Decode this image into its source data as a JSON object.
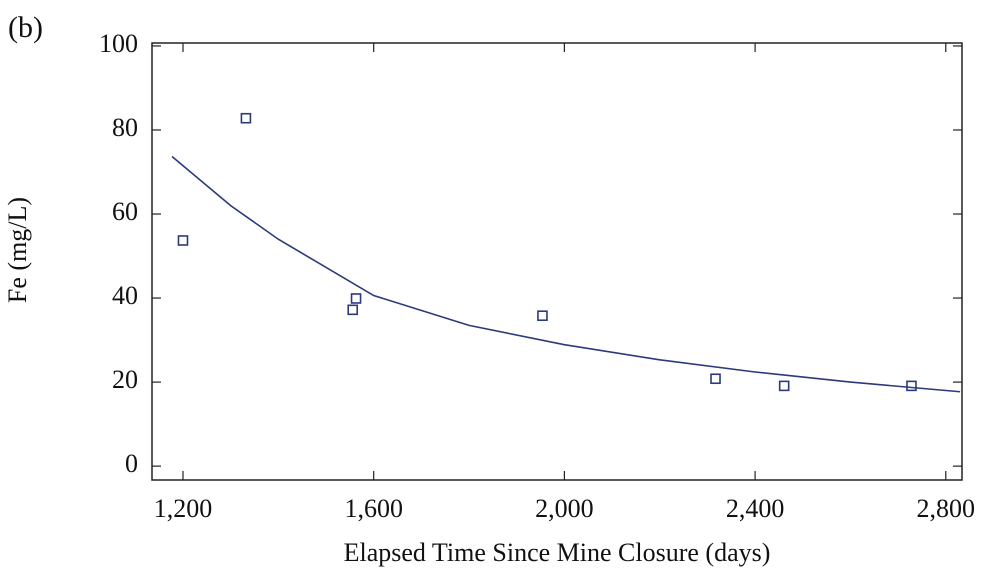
{
  "chart_data": {
    "type": "scatter",
    "panel_label": "(b)",
    "x_label": "Elapsed Time Since Mine Closure (days)",
    "y_label": "Fe (mg/L)",
    "xlim": [
      1135,
      2834
    ],
    "ylim": [
      -3.3,
      100.7
    ],
    "xticks": [
      {
        "value": 1200,
        "label": "1,200"
      },
      {
        "value": 1600,
        "label": "1,600"
      },
      {
        "value": 2000,
        "label": "2,000"
      },
      {
        "value": 2400,
        "label": "2,400"
      },
      {
        "value": 2800,
        "label": "2,800"
      }
    ],
    "yticks": [
      0,
      20,
      40,
      60,
      80,
      100
    ],
    "color": "#2b3a7a",
    "points": {
      "x": [
        1200,
        1332,
        1556,
        1563,
        1954,
        2317,
        2461,
        2728
      ],
      "values": [
        53.7,
        82.8,
        37.2,
        39.9,
        35.8,
        20.8,
        19.1,
        19.1
      ]
    },
    "fit": {
      "x": [
        1177,
        1300,
        1400,
        1600,
        1800,
        2000,
        2200,
        2400,
        2600,
        2830
      ],
      "values": [
        73.7,
        62,
        54,
        40.6,
        33.5,
        28.9,
        25.3,
        22.4,
        20,
        17.7
      ]
    }
  }
}
